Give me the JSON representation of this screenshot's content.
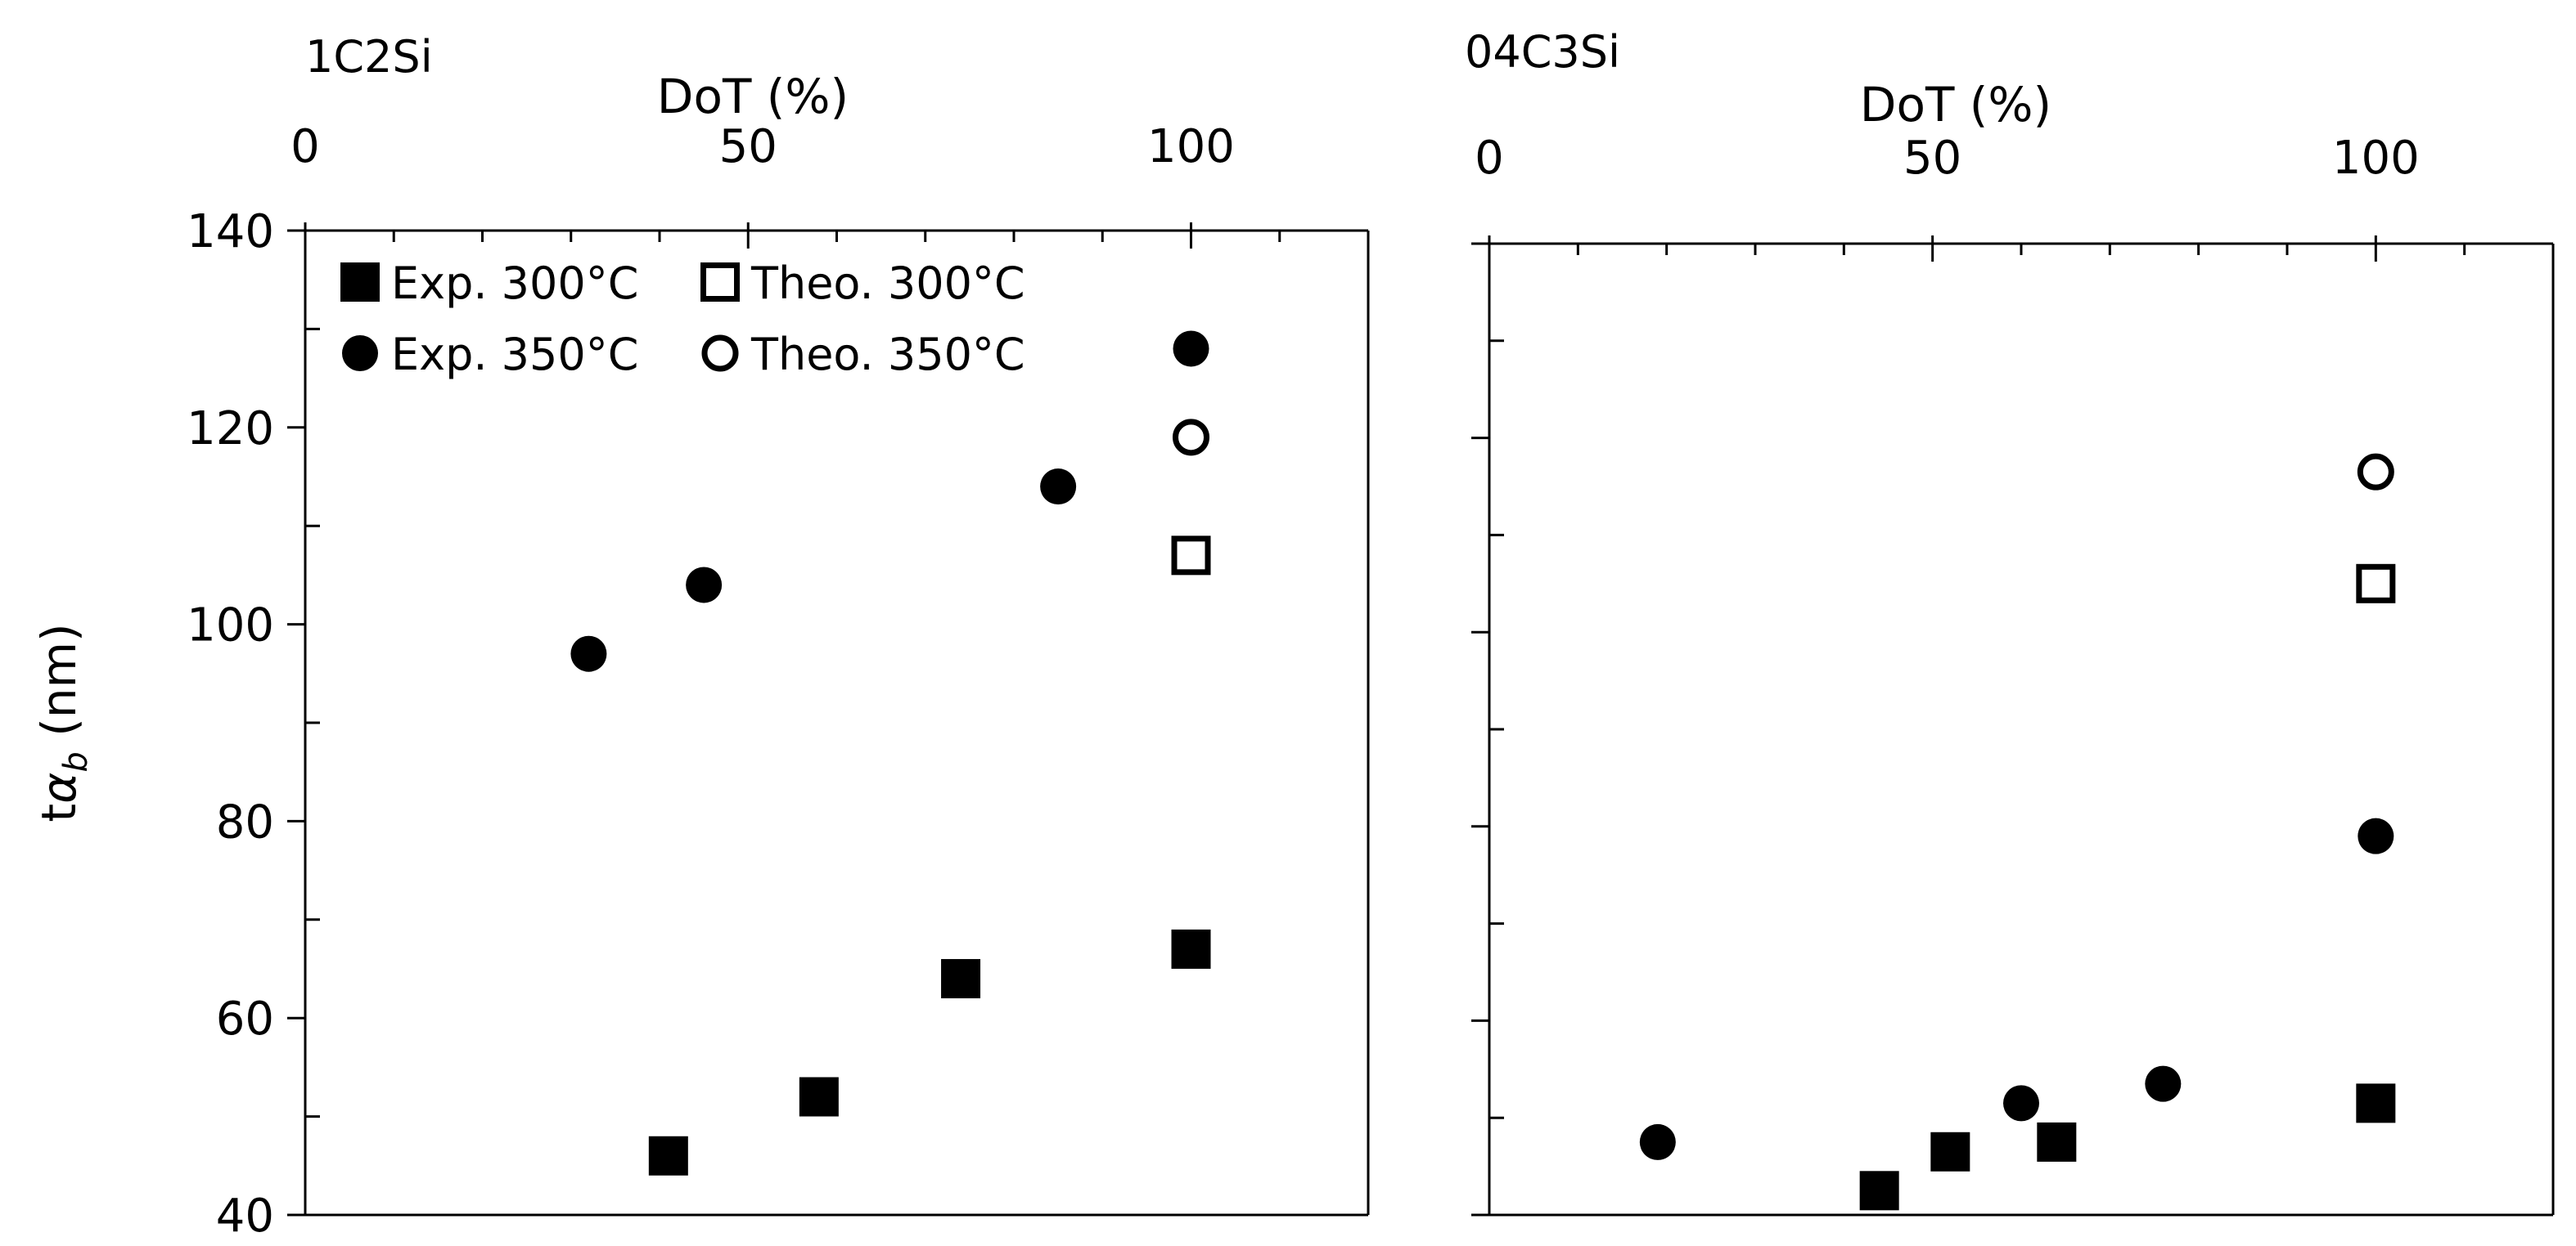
{
  "chart_data": [
    {
      "type": "scatter",
      "title": "1C2Si",
      "xlabel": "DoT (%)",
      "ylabel": "tα",
      "ylabel_sub": "b",
      "ylabel_unit": " (nm)",
      "xlim": [
        0,
        120
      ],
      "ylim": [
        40,
        140
      ],
      "xticks": [
        0,
        50,
        100
      ],
      "yticks": [
        40,
        60,
        80,
        100,
        120,
        140
      ],
      "x_axis_position": "top",
      "grid": false,
      "legend": {
        "placement": "top-left",
        "columns": 2
      },
      "series": [
        {
          "name": "Exp. 300°C",
          "marker": "square-filled",
          "points": [
            [
              41,
              46
            ],
            [
              58,
              52
            ],
            [
              74,
              64
            ],
            [
              100,
              67
            ]
          ]
        },
        {
          "name": "Theo. 300°C",
          "marker": "square-open",
          "points": [
            [
              100,
              107
            ]
          ]
        },
        {
          "name": "Exp. 350°C",
          "marker": "circle-filled",
          "points": [
            [
              32,
              97
            ],
            [
              45,
              104
            ],
            [
              85,
              114
            ],
            [
              100,
              128
            ]
          ]
        },
        {
          "name": "Theo. 350°C",
          "marker": "circle-open",
          "points": [
            [
              100,
              119
            ]
          ]
        }
      ]
    },
    {
      "type": "scatter",
      "title": "04C3Si",
      "xlabel": "DoT (%)",
      "xlim": [
        0,
        120
      ],
      "ylim": [
        40,
        140
      ],
      "xticks": [
        0,
        50,
        100
      ],
      "yticks": [
        40,
        60,
        80,
        100,
        120,
        140
      ],
      "x_axis_position": "top",
      "grid": false,
      "series": [
        {
          "marker": "square-filled",
          "points": [
            [
              44,
              42.5
            ],
            [
              52,
              46.5
            ],
            [
              64,
              47.5
            ],
            [
              100,
              51.5
            ]
          ]
        },
        {
          "marker": "square-open",
          "points": [
            [
              100,
              105
            ]
          ]
        },
        {
          "marker": "circle-filled",
          "points": [
            [
              19,
              47.5
            ],
            [
              60,
              51.5
            ],
            [
              76,
              53.5
            ],
            [
              100,
              79
            ]
          ]
        },
        {
          "marker": "circle-open",
          "points": [
            [
              100,
              116.5
            ]
          ]
        }
      ]
    }
  ]
}
